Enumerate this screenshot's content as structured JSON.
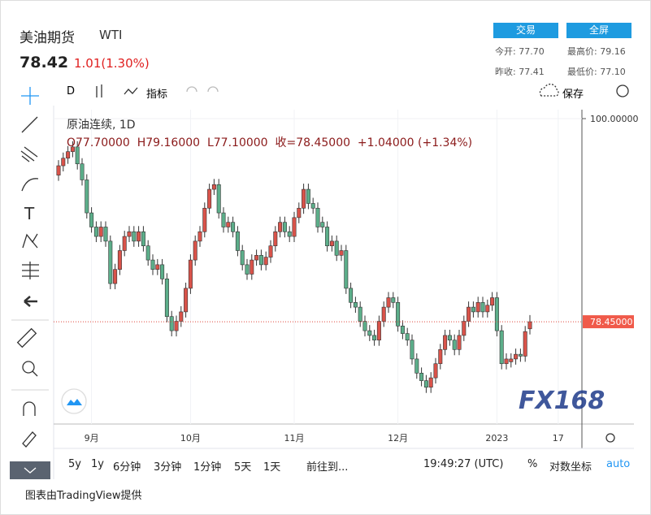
{
  "header": {
    "title": "美油期货",
    "symbol": "WTI",
    "price": "78.42",
    "change": "1.01(1.30%)",
    "buttons": [
      "交易",
      "全屏"
    ],
    "stats": [
      {
        "label": "今开:",
        "value": "77.70"
      },
      {
        "label": "最高价:",
        "value": "79.16"
      },
      {
        "label": "昨收:",
        "value": "77.41"
      },
      {
        "label": "最低价:",
        "value": "77.10"
      }
    ]
  },
  "toolbar": {
    "interval": "D",
    "indicators": "指标",
    "save": "保存"
  },
  "chart_data": {
    "type": "candlestick",
    "legend_title": "原油连续, 1D",
    "ohlc_labels": [
      "O77.70000",
      "H79.16000",
      "L77.10000",
      "收=78.45000",
      "+1.04000 (+1.34%)"
    ],
    "up_color": "#d9534a",
    "down_color": "#5cae8a",
    "grid": true,
    "ylim": [
      67.6,
      100.95
    ],
    "yticks": [
      {
        "value": 100,
        "label": "100.00000"
      }
    ],
    "current_price": {
      "value": 78.45,
      "label": "78.45000"
    },
    "watermark": "FX168",
    "categories": [
      null,
      null,
      null,
      null,
      null,
      null,
      null,
      "9月",
      null,
      null,
      null,
      null,
      null,
      null,
      null,
      null,
      null,
      null,
      null,
      null,
      null,
      null,
      null,
      null,
      null,
      null,
      null,
      null,
      "10月",
      null,
      null,
      null,
      null,
      null,
      null,
      null,
      null,
      null,
      null,
      null,
      null,
      null,
      null,
      null,
      null,
      null,
      null,
      null,
      null,
      null,
      "11月",
      null,
      null,
      null,
      null,
      null,
      null,
      null,
      null,
      null,
      null,
      null,
      null,
      null,
      null,
      null,
      null,
      null,
      null,
      null,
      null,
      null,
      "12月",
      null,
      null,
      null,
      null,
      null,
      null,
      null,
      null,
      null,
      null,
      null,
      null,
      null,
      null,
      null,
      null,
      null,
      null,
      null,
      null,
      "2023",
      null,
      null,
      null,
      null,
      null,
      null,
      null,
      null,
      null,
      null,
      null,
      null,
      "17"
    ],
    "open": [
      94.0,
      95.0,
      95.8,
      96.5,
      97.0,
      95.2,
      93.5,
      90.0,
      88.5,
      87.5,
      88.5,
      87.0,
      82.5,
      84.0,
      86.0,
      87.5,
      88.0,
      87.0,
      88.0,
      86.5,
      85.0,
      84.0,
      84.5,
      83.0,
      79.0,
      77.5,
      78.5,
      79.5,
      82.0,
      85.0,
      87.0,
      88.0,
      90.5,
      92.5,
      93.0,
      90.0,
      88.5,
      89.0,
      88.0,
      86.0,
      84.5,
      83.5,
      85.0,
      85.5,
      84.5,
      85.3,
      86.5,
      88.0,
      89.0,
      88.0,
      87.5,
      89.5,
      90.5,
      92.5,
      91.0,
      90.5,
      89.0,
      88.5,
      86.5,
      87.0,
      85.5,
      86.0,
      82.0,
      80.5,
      80.0,
      78.5,
      77.5,
      77.0,
      76.5,
      78.5,
      80.0,
      81.0,
      80.5,
      78.0,
      77.2,
      76.5,
      74.5,
      73.0,
      72.2,
      71.5,
      72.5,
      74.0,
      75.5,
      77.0,
      76.5,
      75.5,
      77.0,
      78.5,
      80.0,
      79.5,
      80.5,
      79.5,
      80.2,
      81.0,
      77.5,
      74.0,
      74.2,
      74.5,
      75.0,
      74.8,
      77.7,
      null,
      null,
      null,
      null,
      null,
      null
    ],
    "high": [
      95.6,
      96.4,
      97.1,
      97.6,
      97.6,
      95.8,
      94.1,
      90.6,
      89.1,
      89.1,
      89.1,
      87.6,
      84.6,
      86.6,
      88.1,
      88.6,
      88.6,
      88.6,
      88.6,
      87.1,
      85.6,
      85.1,
      85.1,
      83.6,
      79.6,
      79.1,
      80.1,
      82.6,
      85.6,
      87.6,
      88.6,
      91.1,
      93.1,
      93.6,
      93.6,
      90.6,
      89.6,
      89.6,
      88.6,
      86.6,
      85.1,
      85.6,
      86.1,
      86.1,
      85.9,
      87.1,
      88.6,
      89.6,
      89.6,
      88.6,
      90.1,
      91.1,
      93.1,
      93.1,
      91.6,
      91.1,
      89.6,
      89.1,
      87.6,
      87.6,
      86.6,
      86.6,
      82.6,
      81.1,
      80.6,
      79.1,
      78.1,
      77.6,
      79.1,
      80.6,
      81.6,
      81.6,
      81.1,
      78.6,
      77.8,
      77.1,
      75.1,
      73.6,
      72.8,
      73.1,
      74.6,
      76.1,
      77.6,
      77.6,
      77.1,
      77.6,
      79.1,
      80.6,
      80.6,
      81.1,
      81.1,
      80.8,
      81.6,
      81.6,
      78.1,
      75.1,
      75.1,
      75.6,
      75.6,
      78.0,
      79.16,
      null,
      null,
      null,
      null,
      null,
      null
    ],
    "low": [
      93.4,
      94.4,
      95.2,
      95.9,
      94.6,
      92.9,
      89.4,
      87.9,
      86.9,
      86.9,
      86.4,
      81.9,
      81.9,
      83.4,
      85.4,
      86.9,
      86.4,
      86.4,
      85.9,
      84.4,
      83.4,
      83.4,
      82.4,
      78.4,
      76.9,
      76.9,
      77.9,
      78.9,
      81.4,
      84.4,
      86.4,
      87.4,
      89.9,
      91.9,
      89.4,
      87.9,
      87.9,
      87.4,
      85.4,
      83.9,
      82.9,
      82.9,
      84.4,
      83.9,
      83.9,
      84.7,
      85.9,
      87.4,
      87.4,
      86.9,
      86.9,
      88.9,
      89.9,
      90.4,
      89.9,
      87.9,
      87.9,
      85.9,
      85.9,
      84.9,
      84.9,
      81.4,
      79.9,
      79.4,
      77.9,
      76.9,
      76.4,
      75.9,
      75.9,
      77.9,
      79.4,
      79.9,
      77.4,
      76.6,
      75.9,
      73.9,
      72.4,
      71.6,
      70.9,
      70.9,
      71.9,
      73.4,
      74.9,
      75.9,
      74.9,
      74.9,
      76.4,
      77.9,
      78.9,
      78.9,
      78.9,
      78.9,
      79.6,
      76.9,
      73.4,
      73.4,
      73.6,
      73.9,
      74.2,
      74.2,
      77.1,
      null,
      null,
      null,
      null,
      null,
      null
    ],
    "close": [
      95.0,
      95.8,
      96.5,
      97.0,
      95.2,
      93.5,
      90.0,
      88.5,
      87.5,
      88.5,
      87.0,
      82.5,
      84.0,
      86.0,
      87.5,
      88.0,
      87.0,
      88.0,
      86.5,
      85.0,
      84.0,
      84.5,
      83.0,
      79.0,
      77.5,
      78.5,
      79.5,
      82.0,
      85.0,
      87.0,
      88.0,
      90.5,
      92.5,
      93.0,
      90.0,
      88.5,
      89.0,
      88.0,
      86.0,
      84.5,
      83.5,
      85.0,
      85.5,
      84.5,
      85.3,
      86.5,
      88.0,
      89.0,
      88.0,
      87.5,
      89.5,
      90.5,
      92.5,
      91.0,
      90.5,
      88.5,
      88.5,
      86.5,
      87.0,
      85.5,
      86.0,
      82.0,
      80.5,
      80.0,
      78.5,
      77.5,
      77.0,
      76.5,
      78.5,
      80.0,
      81.0,
      80.5,
      78.0,
      77.2,
      76.5,
      74.5,
      73.0,
      72.2,
      71.5,
      72.5,
      74.0,
      75.5,
      77.0,
      76.5,
      75.5,
      77.0,
      78.5,
      80.0,
      79.5,
      80.5,
      79.5,
      80.2,
      81.0,
      77.5,
      74.0,
      74.5,
      74.5,
      75.0,
      74.8,
      77.41,
      78.45,
      null,
      null,
      null,
      null,
      null,
      null
    ]
  },
  "bottom_bar": {
    "ranges": [
      "5y",
      "1y",
      "6分钟",
      "3分钟",
      "1分钟",
      "5天",
      "1天"
    ],
    "goto": "前往到...",
    "time": "19:49:27 (UTC)",
    "percent": "%",
    "log": "对数坐标",
    "auto": "auto"
  },
  "footer": "图表由TradingView提供"
}
